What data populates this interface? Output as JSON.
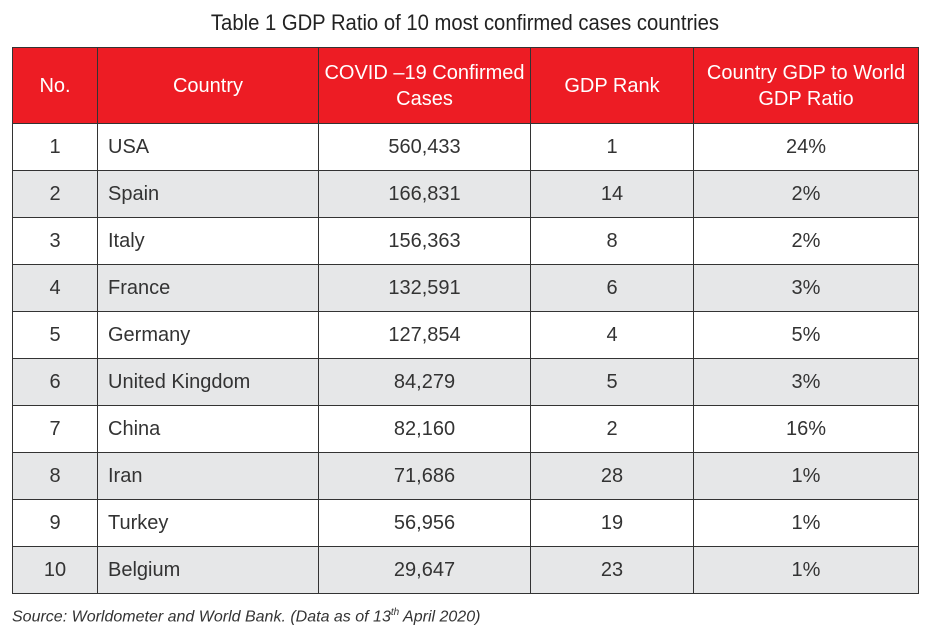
{
  "title": "Table 1 GDP Ratio of 10 most confirmed cases countries",
  "header_color": "#ed1c24",
  "columns": [
    "No.",
    "Country",
    "COVID –19 Confirmed Cases",
    "GDP Rank",
    "Country GDP to World GDP Ratio"
  ],
  "rows": [
    [
      "1",
      "USA",
      "560,433",
      "1",
      "24%"
    ],
    [
      "2",
      "Spain",
      "166,831",
      "14",
      "2%"
    ],
    [
      "3",
      "Italy",
      "156,363",
      "8",
      "2%"
    ],
    [
      "4",
      "France",
      "132,591",
      "6",
      "3%"
    ],
    [
      "5",
      "Germany",
      "127,854",
      "4",
      "5%"
    ],
    [
      "6",
      "United Kingdom",
      "84,279",
      "5",
      "3%"
    ],
    [
      "7",
      "China",
      "82,160",
      "2",
      "16%"
    ],
    [
      "8",
      "Iran",
      "71,686",
      "28",
      "1%"
    ],
    [
      "9",
      "Turkey",
      "56,956",
      "19",
      "1%"
    ],
    [
      "10",
      "Belgium",
      "29,647",
      "23",
      "1%"
    ]
  ],
  "source": {
    "prefix": "Source: Worldometer and World Bank. (Data as of 13",
    "sup": "th",
    "suffix": " April 2020)"
  }
}
